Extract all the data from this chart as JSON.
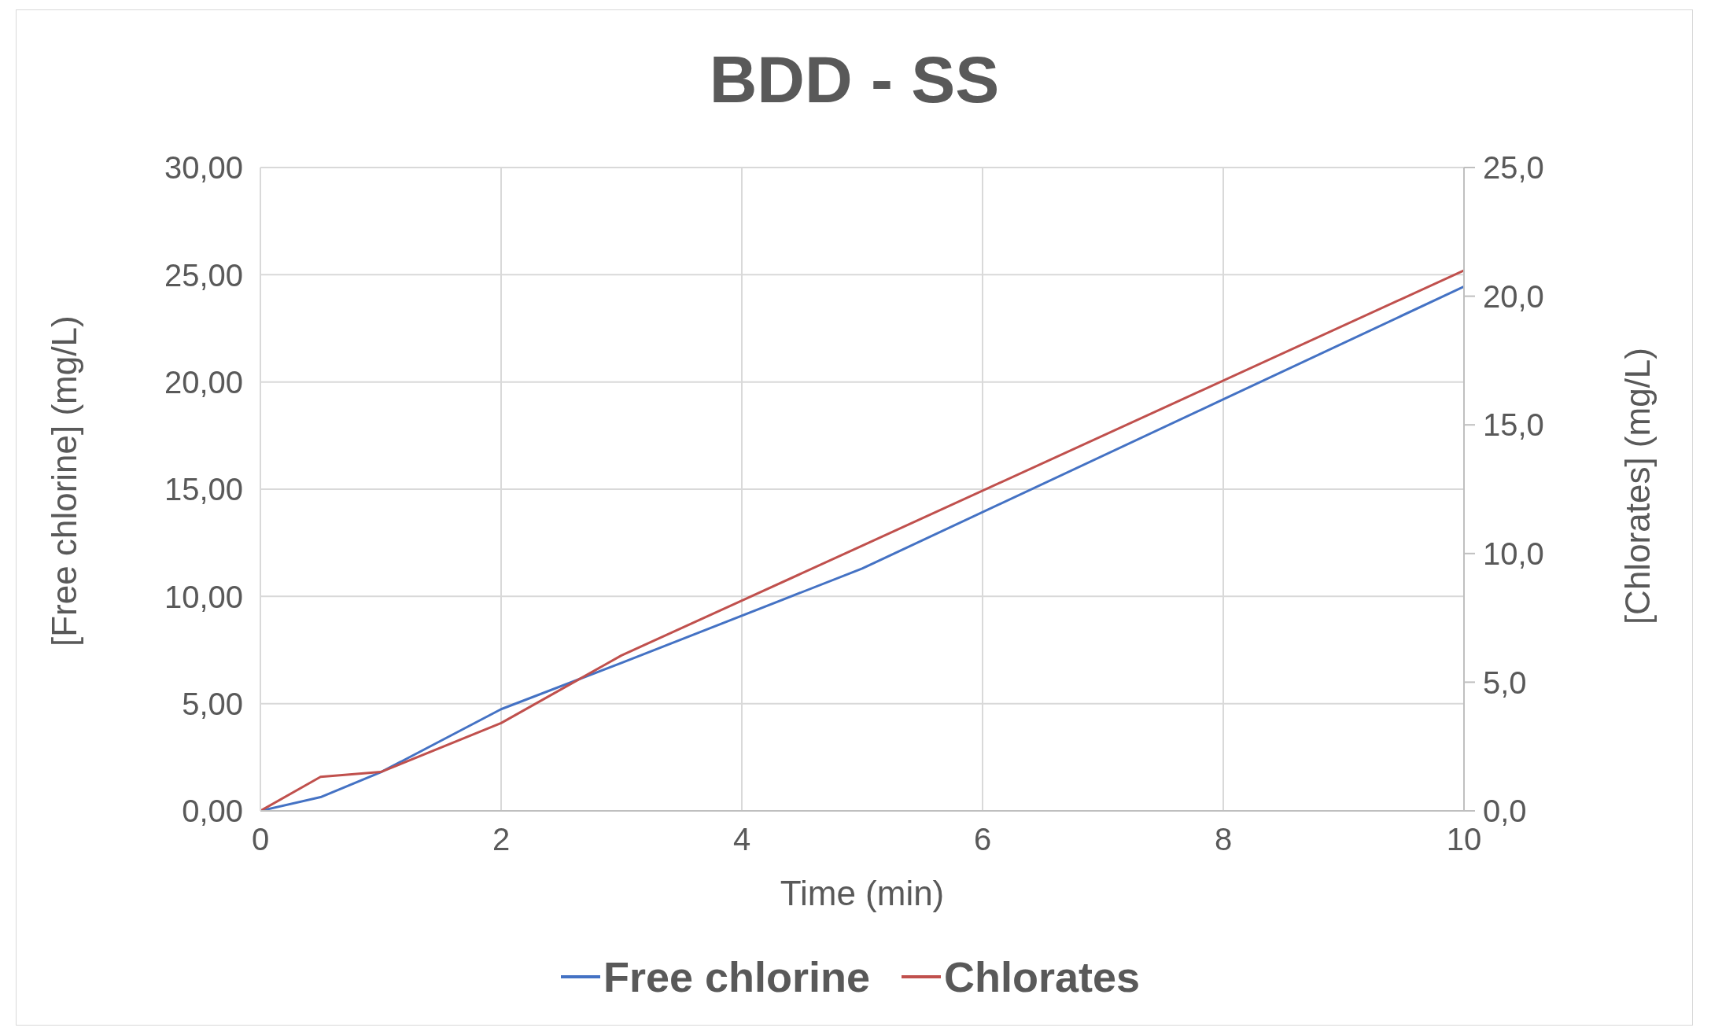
{
  "chart_data": {
    "type": "line",
    "title": "BDD - SS",
    "xlabel": "Time (min)",
    "ylabel": "[Free chlorine] (mg/L)",
    "y2label": "[Chlorates] (mg/L)",
    "x": [
      0,
      0.5,
      1,
      2,
      3,
      5,
      10
    ],
    "series": [
      {
        "name": "Free chlorine",
        "color": "#4472c4",
        "values": [
          0,
          0.64,
          1.8,
          4.74,
          6.9,
          11.3,
          24.45
        ]
      },
      {
        "name": "Chlorates",
        "color": "#c0504d",
        "axis": "y2",
        "values": [
          0,
          1.32,
          1.51,
          3.41,
          6.04,
          10.3,
          21.0
        ]
      }
    ],
    "xlim": [
      0,
      10
    ],
    "xticks": [
      0,
      2,
      4,
      6,
      8,
      10
    ],
    "ylim": [
      0,
      30
    ],
    "yticks": [
      {
        "value": 0,
        "label": "0,00"
      },
      {
        "value": 5,
        "label": "5,00"
      },
      {
        "value": 10,
        "label": "10,00"
      },
      {
        "value": 15,
        "label": "15,00"
      },
      {
        "value": 20,
        "label": "20,00"
      },
      {
        "value": 25,
        "label": "25,00"
      },
      {
        "value": 30,
        "label": "30,00"
      }
    ],
    "y2lim": [
      0,
      25
    ],
    "y2ticks": [
      {
        "value": 0,
        "label": "0,0"
      },
      {
        "value": 5,
        "label": "5,0"
      },
      {
        "value": 10,
        "label": "10,0"
      },
      {
        "value": 15,
        "label": "15,0"
      },
      {
        "value": 20,
        "label": "20,0"
      },
      {
        "value": 25,
        "label": "25,0"
      }
    ],
    "grid": true,
    "legend": "bottom",
    "marker": "none",
    "line_style": "solid"
  }
}
